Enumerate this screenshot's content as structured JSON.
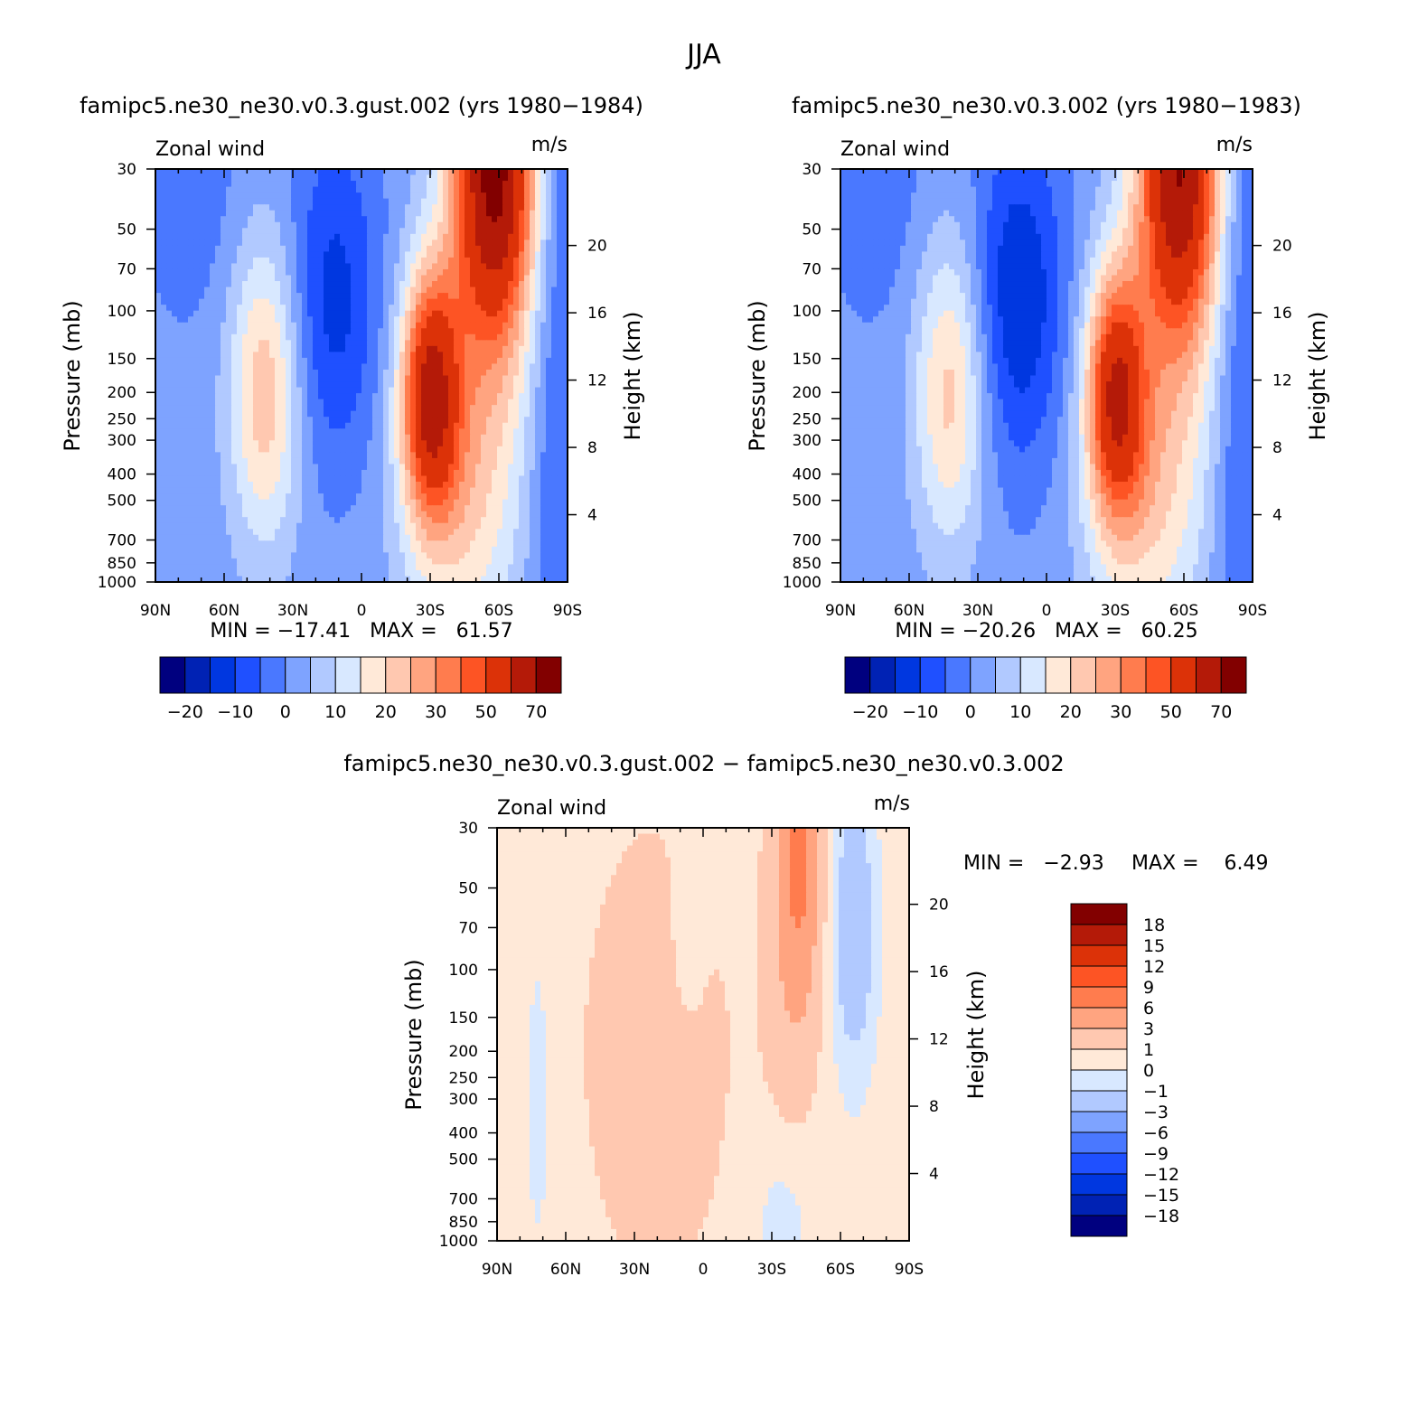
{
  "figure": {
    "title": "JJA"
  },
  "palettes": {
    "field": [
      "#00007f",
      "#0022b4",
      "#0037e0",
      "#1f50ff",
      "#4a78ff",
      "#7ea3ff",
      "#b1c9ff",
      "#d8e8ff",
      "#ffe9d8",
      "#ffc8b0",
      "#ffa480",
      "#ff7c4e",
      "#fd5424",
      "#dc3208",
      "#b41a08",
      "#820000"
    ],
    "diff": [
      "#00007f",
      "#0022b4",
      "#0037e0",
      "#1f50ff",
      "#4a78ff",
      "#7ea3ff",
      "#b1c9ff",
      "#d8e8ff",
      "#ffe9d8",
      "#ffc8b0",
      "#ffa480",
      "#ff7c4e",
      "#fd5424",
      "#dc3208",
      "#b41a08",
      "#820000"
    ]
  },
  "chart_data": [
    {
      "id": "panel1",
      "type": "heatmap",
      "title": "famipc5.ne30_ne30.v0.3.gust.002 (yrs 1980−1984)",
      "left_label": "Zonal wind",
      "right_label": "m/s",
      "ylabel": "Pressure (mb)",
      "y2label": "Height (km)",
      "stats": "MIN = −17.41   MAX =   61.57",
      "x_ticks": [
        "90N",
        "60N",
        "30N",
        "0",
        "30S",
        "60S",
        "90S"
      ],
      "y_ticks": [
        30,
        50,
        70,
        100,
        150,
        200,
        250,
        300,
        400,
        500,
        700,
        850,
        1000
      ],
      "y2_ticks": [
        4,
        8,
        12,
        16,
        20
      ],
      "ylim": [
        1000,
        30
      ],
      "xlim": [
        90,
        -90
      ],
      "colorbar_labels": [
        "−20",
        "−10",
        "0",
        "10",
        "20",
        "30",
        "50",
        "70"
      ],
      "levels": [
        -20,
        -15,
        -10,
        -5,
        0,
        5,
        10,
        15,
        20,
        25,
        30,
        35,
        40,
        50,
        60,
        70
      ],
      "field": {
        "min": -17.41,
        "max": 61.57,
        "features": [
          {
            "kind": "tropical_easterly_jet",
            "lat": 10,
            "p": 120,
            "amp": -14
          },
          {
            "kind": "northern_subtropical_jet",
            "lat": 40,
            "p": 200,
            "amp": 22
          },
          {
            "kind": "southern_polar_night_jet",
            "lat": -55,
            "p": 30,
            "amp": 62
          },
          {
            "kind": "southern_subtropical_jet",
            "lat": -28,
            "p": 200,
            "amp": 45
          }
        ]
      }
    },
    {
      "id": "panel2",
      "type": "heatmap",
      "title": "famipc5.ne30_ne30.v0.3.002 (yrs 1980−1983)",
      "left_label": "Zonal wind",
      "right_label": "m/s",
      "ylabel": "Pressure (mb)",
      "y2label": "Height (km)",
      "stats": "MIN = −20.26   MAX =   60.25",
      "x_ticks": [
        "90N",
        "60N",
        "30N",
        "0",
        "30S",
        "60S",
        "90S"
      ],
      "y_ticks": [
        30,
        50,
        70,
        100,
        150,
        200,
        250,
        300,
        400,
        500,
        700,
        850,
        1000
      ],
      "y2_ticks": [
        4,
        8,
        12,
        16,
        20
      ],
      "ylim": [
        1000,
        30
      ],
      "xlim": [
        90,
        -90
      ],
      "colorbar_labels": [
        "−20",
        "−10",
        "0",
        "10",
        "20",
        "30",
        "50",
        "70"
      ],
      "levels": [
        -20,
        -15,
        -10,
        -5,
        0,
        5,
        10,
        15,
        20,
        25,
        30,
        35,
        40,
        50,
        60,
        70
      ],
      "field": {
        "min": -20.26,
        "max": 60.25,
        "features": [
          {
            "kind": "tropical_easterly_jet",
            "lat": 10,
            "p": 120,
            "amp": -17
          },
          {
            "kind": "northern_subtropical_jet",
            "lat": 40,
            "p": 200,
            "amp": 20
          },
          {
            "kind": "southern_polar_night_jet",
            "lat": -55,
            "p": 30,
            "amp": 58
          },
          {
            "kind": "southern_subtropical_jet",
            "lat": -28,
            "p": 200,
            "amp": 42
          }
        ]
      }
    },
    {
      "id": "panel3",
      "type": "heatmap",
      "title": "famipc5.ne30_ne30.v0.3.gust.002 − famipc5.ne30_ne30.v0.3.002",
      "left_label": "Zonal wind",
      "right_label": "m/s",
      "ylabel": "Pressure (mb)",
      "y2label": "Height (km)",
      "stats_min": "MIN =   −2.93",
      "stats_max": "MAX =    6.49",
      "x_ticks": [
        "90N",
        "60N",
        "30N",
        "0",
        "30S",
        "60S",
        "90S"
      ],
      "y_ticks": [
        30,
        50,
        70,
        100,
        150,
        200,
        250,
        300,
        400,
        500,
        700,
        850,
        1000
      ],
      "y2_ticks": [
        4,
        8,
        12,
        16,
        20
      ],
      "ylim": [
        1000,
        30
      ],
      "xlim": [
        90,
        -90
      ],
      "colorbar_labels": [
        "18",
        "15",
        "12",
        "9",
        "6",
        "3",
        "1",
        "0",
        "−1",
        "−3",
        "−6",
        "−9",
        "−12",
        "−15",
        "−18"
      ],
      "levels": [
        -18,
        -15,
        -12,
        -9,
        -6,
        -3,
        -1,
        0,
        1,
        3,
        6,
        9,
        12,
        15,
        18
      ],
      "field": {
        "min": -2.93,
        "max": 6.49,
        "features": [
          {
            "kind": "positive_band",
            "lat": 15,
            "p": 200,
            "amp": 1.4
          },
          {
            "kind": "southern_max",
            "lat": -45,
            "p": 30,
            "amp": 6.3
          },
          {
            "kind": "negative_band",
            "lat": -65,
            "p": 70,
            "amp": -2.9
          },
          {
            "kind": "weak_negative",
            "lat": 75,
            "p": 300,
            "amp": -0.4
          }
        ]
      }
    }
  ]
}
